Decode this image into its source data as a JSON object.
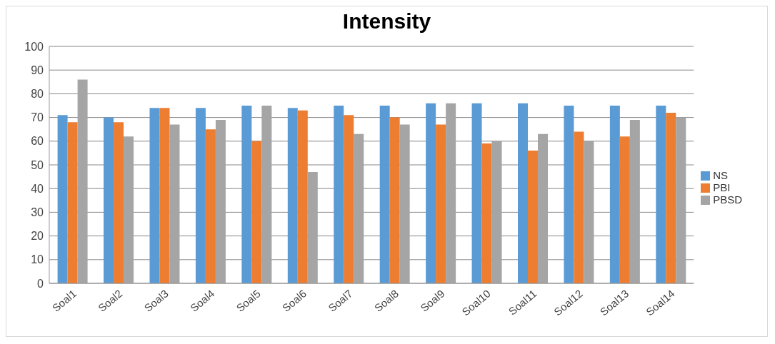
{
  "chart_data": {
    "type": "bar",
    "title": "Intensity",
    "categories": [
      "Soal1",
      "Soal2",
      "Soal3",
      "Soal4",
      "Soal5",
      "Soal6",
      "Soal7",
      "Soal8",
      "Soal9",
      "Soal10",
      "Soal11",
      "Soal12",
      "Soal13",
      "Soal14"
    ],
    "series": [
      {
        "name": "NS",
        "color": "#5b9bd5",
        "values": [
          71,
          70,
          74,
          74,
          75,
          74,
          75,
          75,
          76,
          76,
          76,
          75,
          75,
          75
        ]
      },
      {
        "name": "PBI",
        "color": "#ed7d31",
        "values": [
          68,
          68,
          74,
          65,
          60,
          73,
          71,
          70,
          67,
          59,
          56,
          64,
          62,
          72
        ]
      },
      {
        "name": "PBSD",
        "color": "#a5a5a5",
        "values": [
          86,
          62,
          67,
          69,
          75,
          47,
          63,
          67,
          76,
          60,
          63,
          60,
          69,
          70
        ]
      }
    ],
    "ylim": [
      0,
      100
    ],
    "yticks": [
      0,
      10,
      20,
      30,
      40,
      50,
      60,
      70,
      80,
      90,
      100
    ],
    "grid": "y",
    "legend": "right"
  }
}
